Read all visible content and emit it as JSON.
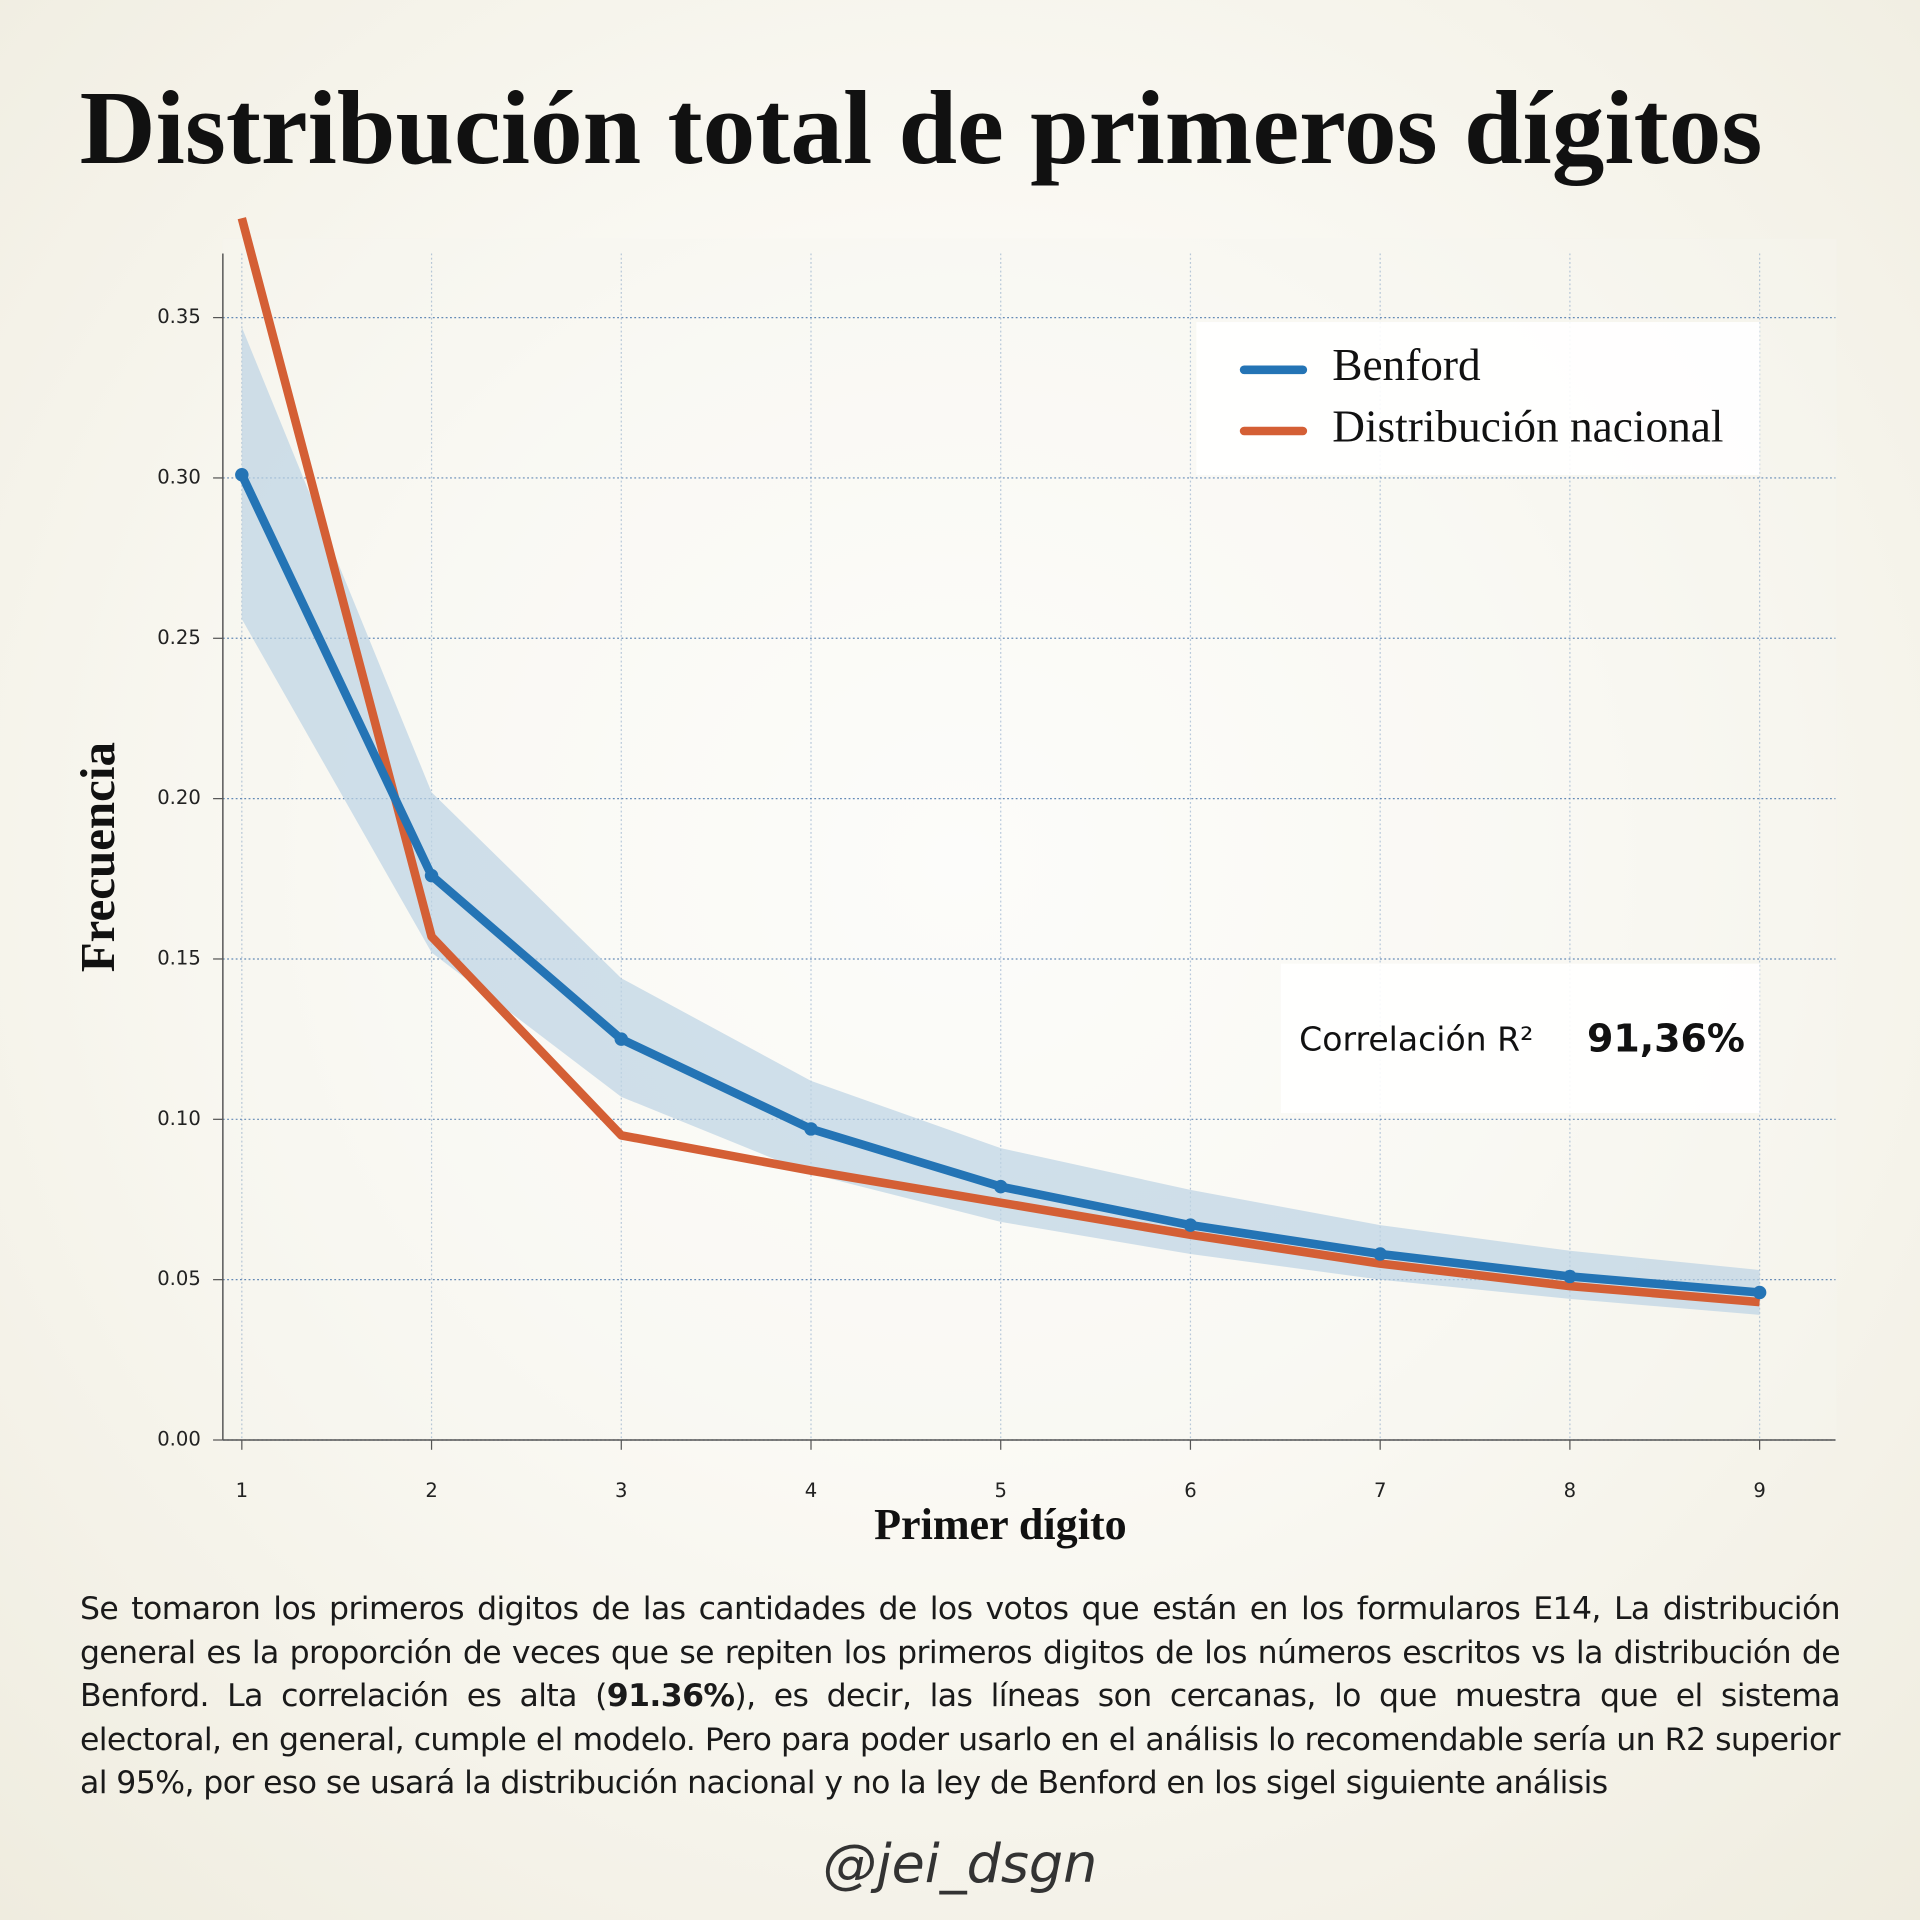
{
  "chart_data": {
    "type": "line",
    "title": "Distribución total de primeros dígitos",
    "x_label": "Primer dígito",
    "y_label": "Frecuencia",
    "x": [
      1,
      2,
      3,
      4,
      5,
      6,
      7,
      8,
      9
    ],
    "xlim": [
      0.9,
      9.4
    ],
    "xticks": [
      1,
      2,
      3,
      4,
      5,
      6,
      7,
      8,
      9
    ],
    "ylim": [
      0,
      0.37
    ],
    "yticks": [
      {
        "value": 0,
        "label": "0.00"
      },
      {
        "value": 0.05,
        "label": "0.05"
      },
      {
        "value": 0.1,
        "label": "0.10"
      },
      {
        "value": 0.15,
        "label": "0.15"
      },
      {
        "value": 0.2,
        "label": "0.20"
      },
      {
        "value": 0.25,
        "label": "0.25"
      },
      {
        "value": 0.3,
        "label": "0.30"
      },
      {
        "value": 0.35,
        "label": "0.35"
      }
    ],
    "grid": true,
    "legend": "upper right",
    "series": [
      {
        "name": "Benford",
        "color": "#2474b5",
        "markers": true,
        "values": [
          0.301,
          0.176,
          0.125,
          0.097,
          0.079,
          0.067,
          0.058,
          0.051,
          0.046
        ]
      },
      {
        "name": "Distribución nacional",
        "color": "#d45f35",
        "markers": false,
        "values": [
          0.381,
          0.157,
          0.095,
          0.084,
          0.074,
          0.064,
          0.055,
          0.048,
          0.043
        ]
      }
    ],
    "band": {
      "color": "#bcd3e4",
      "upper": [
        0.347,
        0.202,
        0.144,
        0.112,
        0.091,
        0.078,
        0.067,
        0.059,
        0.053
      ],
      "lower": [
        0.256,
        0.152,
        0.107,
        0.083,
        0.068,
        0.058,
        0.05,
        0.044,
        0.039
      ]
    },
    "annotation": {
      "label": "Correlación R²",
      "value": "91,36%"
    }
  },
  "note": {
    "before": "Se tomaron los primeros digitos de las cantidades de los votos que están en los formularos E14, La distribución general es la proporción de veces que se repiten los primeros digitos de los números escritos vs la distribución de Benford. La correlación es alta (",
    "bold": "91.36%",
    "after": "), es decir, las líneas son cercanas, lo que muestra que el sistema electoral, en general, cumple el modelo. Pero para poder usarlo en el análisis lo recomendable sería un R2 superior al 95%, por eso se usará la distribución nacional y no la ley de Benford en los sigel siguiente análisis"
  },
  "footer": "@jei_dsgn"
}
